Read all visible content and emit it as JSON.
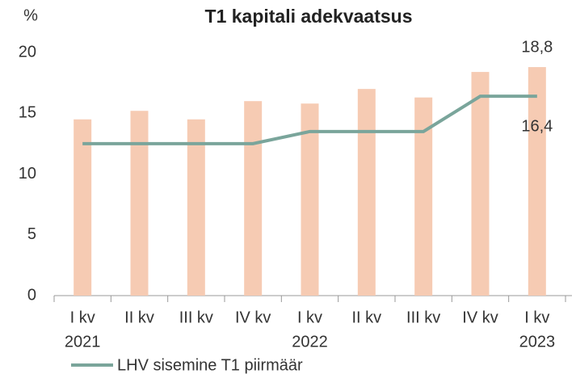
{
  "chart_data": {
    "type": "bar_line",
    "title": "T1 kapitali adekvaatsus",
    "y_unit": "%",
    "categories": [
      "I kv",
      "II kv",
      "III kv",
      "IV kv",
      "I kv",
      "II kv",
      "III kv",
      "IV kv",
      "I kv"
    ],
    "category_years": [
      "2021",
      null,
      null,
      null,
      "2022",
      null,
      null,
      null,
      "2023"
    ],
    "series": [
      {
        "type": "bar",
        "color": "#f6cbb3",
        "values": [
          14.5,
          15.2,
          14.5,
          16.0,
          15.8,
          17.0,
          16.3,
          18.4,
          18.8
        ],
        "value_labels": [
          null,
          null,
          null,
          null,
          null,
          null,
          null,
          null,
          "18,8"
        ]
      },
      {
        "type": "line",
        "name": "LHV sisemine T1 piirmäär",
        "color": "#7aa59b",
        "values": [
          12.5,
          12.5,
          12.5,
          12.5,
          13.5,
          13.5,
          13.5,
          16.4,
          16.4
        ],
        "value_labels": [
          null,
          null,
          null,
          null,
          null,
          null,
          null,
          null,
          "16,4"
        ]
      }
    ],
    "ylim": [
      0,
      20
    ],
    "yticks": [
      0,
      5,
      10,
      15,
      20
    ],
    "legend": "bottom-left"
  }
}
